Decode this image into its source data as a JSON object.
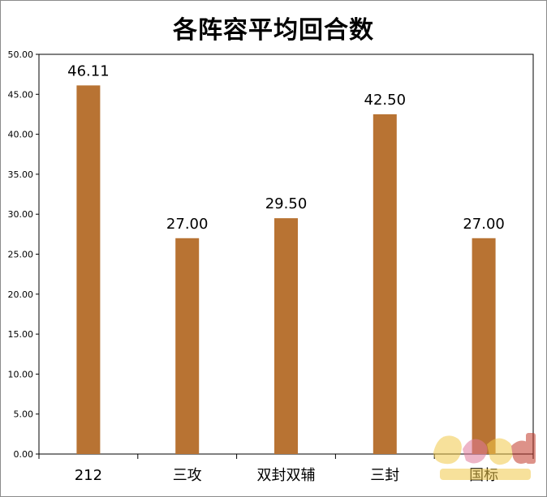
{
  "chart_data": {
    "type": "bar",
    "title": "各阵容平均回合数",
    "categories": [
      "212",
      "三攻",
      "双封双辅",
      "三封",
      "国标"
    ],
    "values": [
      46.11,
      27.0,
      29.5,
      42.5,
      27.0
    ],
    "data_labels": [
      "46.11",
      "27.00",
      "29.50",
      "42.50",
      "27.00"
    ],
    "y_ticks": [
      "0.00",
      "5.00",
      "10.00",
      "15.00",
      "20.00",
      "25.00",
      "30.00",
      "35.00",
      "40.00",
      "45.00",
      "50.00"
    ],
    "ylim": [
      0,
      50
    ],
    "grid": false,
    "legend": "none",
    "bar_color": "#b87333"
  },
  "watermark": {
    "colors": [
      "#f1c94a",
      "#e07a9a",
      "#c23a2a"
    ]
  }
}
